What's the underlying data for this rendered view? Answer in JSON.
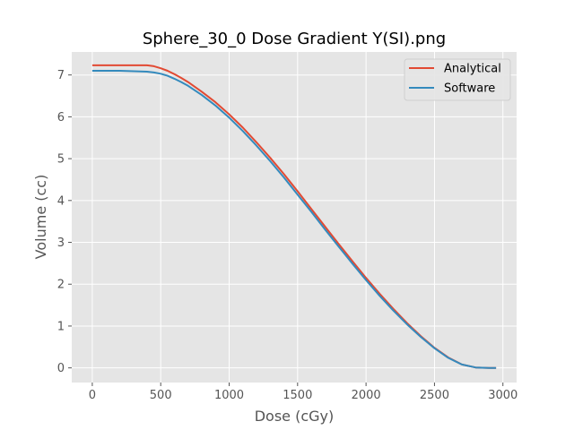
{
  "chart_data": {
    "type": "line",
    "title": "Sphere_30_0 Dose Gradient Y(SI).png",
    "xlabel": "Dose (cGy)",
    "ylabel": "Volume (cc)",
    "xlim": [
      -150,
      3100
    ],
    "ylim": [
      -0.35,
      7.55
    ],
    "xticks": [
      0,
      500,
      1000,
      1500,
      2000,
      2500,
      3000
    ],
    "yticks": [
      0,
      1,
      2,
      3,
      4,
      5,
      6,
      7
    ],
    "grid": true,
    "legend": "top-right",
    "series": [
      {
        "name": "Analytical",
        "color": "#E24A33",
        "x": [
          0,
          100,
          200,
          300,
          400,
          450,
          500,
          550,
          600,
          650,
          700,
          800,
          900,
          1000,
          1100,
          1200,
          1300,
          1400,
          1500,
          1600,
          1700,
          1800,
          1900,
          2000,
          2100,
          2200,
          2300,
          2400,
          2500,
          2600,
          2700,
          2800,
          2900,
          2950
        ],
        "y": [
          7.23,
          7.23,
          7.23,
          7.23,
          7.23,
          7.21,
          7.16,
          7.1,
          7.02,
          6.93,
          6.83,
          6.6,
          6.35,
          6.06,
          5.74,
          5.39,
          5.02,
          4.63,
          4.22,
          3.8,
          3.38,
          2.96,
          2.55,
          2.15,
          1.77,
          1.41,
          1.07,
          0.76,
          0.48,
          0.25,
          0.08,
          0.01,
          0.0,
          0.0
        ]
      },
      {
        "name": "Software",
        "color": "#348ABD",
        "x": [
          0,
          100,
          200,
          300,
          400,
          450,
          500,
          550,
          600,
          650,
          700,
          800,
          900,
          1000,
          1100,
          1200,
          1300,
          1400,
          1500,
          1600,
          1700,
          1800,
          1900,
          2000,
          2100,
          2200,
          2300,
          2400,
          2500,
          2600,
          2700,
          2800,
          2900,
          2950
        ],
        "y": [
          7.1,
          7.1,
          7.1,
          7.09,
          7.08,
          7.06,
          7.03,
          6.98,
          6.91,
          6.83,
          6.74,
          6.52,
          6.27,
          5.98,
          5.66,
          5.31,
          4.94,
          4.55,
          4.14,
          3.73,
          3.31,
          2.9,
          2.49,
          2.1,
          1.72,
          1.37,
          1.04,
          0.74,
          0.47,
          0.24,
          0.08,
          0.01,
          0.0,
          0.0
        ]
      }
    ]
  }
}
